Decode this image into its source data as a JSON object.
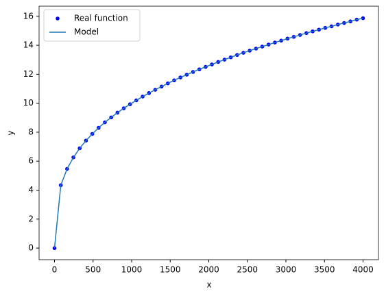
{
  "chart_data": {
    "type": "scatter-line",
    "x_label": "x",
    "y_label": "y",
    "x": [
      0,
      81.63,
      163.27,
      244.9,
      326.53,
      408.16,
      489.8,
      571.43,
      653.06,
      734.69,
      816.33,
      897.96,
      979.59,
      1061.22,
      1142.86,
      1224.49,
      1306.12,
      1387.76,
      1469.39,
      1551.02,
      1632.65,
      1714.29,
      1795.92,
      1877.55,
      1959.18,
      2040.82,
      2122.45,
      2204.08,
      2285.71,
      2367.35,
      2448.98,
      2530.61,
      2612.24,
      2693.88,
      2775.51,
      2857.14,
      2938.78,
      3020.41,
      3102.04,
      3183.67,
      3265.31,
      3346.94,
      3428.57,
      3510.2,
      3591.84,
      3673.47,
      3755.1,
      3836.73,
      3918.37,
      4000
    ],
    "series": [
      {
        "name": "Real function",
        "style": "points",
        "color": "#0000ff",
        "values": [
          0,
          4.34,
          5.47,
          6.26,
          6.89,
          7.42,
          7.88,
          8.3,
          8.68,
          9.02,
          9.35,
          9.65,
          9.93,
          10.2,
          10.46,
          10.7,
          10.93,
          11.15,
          11.37,
          11.58,
          11.78,
          11.97,
          12.16,
          12.34,
          12.51,
          12.68,
          12.85,
          13.01,
          13.17,
          13.33,
          13.48,
          13.63,
          13.77,
          13.91,
          14.05,
          14.19,
          14.32,
          14.46,
          14.58,
          14.71,
          14.84,
          14.96,
          15.08,
          15.2,
          15.31,
          15.43,
          15.54,
          15.65,
          15.77,
          15.87
        ]
      },
      {
        "name": "Model",
        "style": "line",
        "color": "#1f77b4",
        "values": [
          0,
          4.34,
          5.47,
          6.26,
          6.89,
          7.42,
          7.88,
          8.3,
          8.68,
          9.02,
          9.35,
          9.65,
          9.93,
          10.2,
          10.46,
          10.7,
          10.93,
          11.15,
          11.37,
          11.58,
          11.78,
          11.97,
          12.16,
          12.34,
          12.51,
          12.68,
          12.85,
          13.01,
          13.17,
          13.33,
          13.48,
          13.63,
          13.77,
          13.91,
          14.05,
          14.19,
          14.32,
          14.46,
          14.58,
          14.71,
          14.84,
          14.96,
          15.08,
          15.2,
          15.31,
          15.43,
          15.54,
          15.65,
          15.77,
          15.87
        ]
      }
    ],
    "xlim": [
      -200,
      4200
    ],
    "ylim": [
      -0.8,
      16.7
    ],
    "xticks": [
      0,
      500,
      1000,
      1500,
      2000,
      2500,
      3000,
      3500,
      4000
    ],
    "yticks": [
      0,
      2,
      4,
      6,
      8,
      10,
      12,
      14,
      16
    ],
    "grid": false,
    "legend": "upper-left"
  }
}
